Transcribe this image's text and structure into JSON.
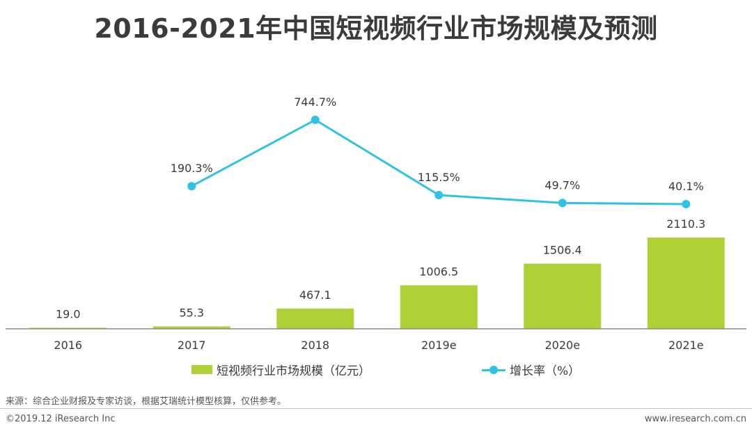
{
  "title": "2016-2021年中国短视频行业市场规模及预测",
  "chart_data": {
    "type": "bar+line",
    "categories": [
      "2016",
      "2017",
      "2018",
      "2019e",
      "2020e",
      "2021e"
    ],
    "series": [
      {
        "name": "短视频行业市场规模（亿元）",
        "type": "bar",
        "values": [
          19.0,
          55.3,
          467.1,
          1006.5,
          1506.4,
          2110.3
        ],
        "labels": [
          "19.0",
          "55.3",
          "467.1",
          "1006.5",
          "1506.4",
          "2110.3"
        ]
      },
      {
        "name": "增长率（%）",
        "type": "line",
        "values": [
          null,
          190.3,
          744.7,
          115.5,
          49.7,
          40.1
        ],
        "labels": [
          "",
          "190.3%",
          "744.7%",
          "115.5%",
          "49.7%",
          "40.1%"
        ]
      }
    ],
    "bar_ylim": [
      0,
      2200
    ],
    "line_ylim": [
      40,
      745
    ]
  },
  "colors": {
    "bar": "#afd135",
    "line": "#2ec2e5",
    "axis": "#8c8c8c"
  },
  "legend": {
    "bar_label": "短视频行业市场规模（亿元）",
    "line_label": "增长率（%）"
  },
  "source": "来源：综合企业财报及专家访谈，根据艾瑞统计模型核算，仅供参考。",
  "copyright": "©2019.12 iResearch Inc",
  "website": "www.iresearch.com.cn"
}
